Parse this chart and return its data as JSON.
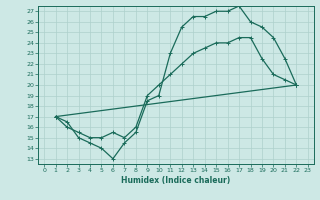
{
  "title": "",
  "xlabel": "Humidex (Indice chaleur)",
  "bg_color": "#cde8e5",
  "line_color": "#1a6b5a",
  "grid_color": "#aed0cc",
  "xlim": [
    -0.5,
    23.5
  ],
  "ylim": [
    12.5,
    27.5
  ],
  "xticks": [
    0,
    1,
    2,
    3,
    4,
    5,
    6,
    7,
    8,
    9,
    10,
    11,
    12,
    13,
    14,
    15,
    16,
    17,
    18,
    19,
    20,
    21,
    22,
    23
  ],
  "yticks": [
    13,
    14,
    15,
    16,
    17,
    18,
    19,
    20,
    21,
    22,
    23,
    24,
    25,
    26,
    27
  ],
  "line1_x": [
    1,
    2,
    3,
    4,
    5,
    6,
    7,
    8,
    9,
    10,
    11,
    12,
    13,
    14,
    15,
    16,
    17,
    18,
    19,
    20,
    21,
    22
  ],
  "line1_y": [
    17,
    16.5,
    15,
    14.5,
    14,
    13,
    14.5,
    15.5,
    18.5,
    19,
    23,
    25.5,
    26.5,
    26.5,
    27,
    27,
    27.5,
    26,
    25.5,
    24.5,
    22.5,
    20
  ],
  "line2_x": [
    1,
    22
  ],
  "line2_y": [
    17,
    20
  ],
  "line3_x": [
    1,
    2,
    3,
    4,
    5,
    6,
    7,
    8,
    9,
    10,
    11,
    12,
    13,
    14,
    15,
    16,
    17,
    18,
    19,
    20,
    21,
    22
  ],
  "line3_y": [
    17,
    16,
    15.5,
    15,
    15,
    15.5,
    15,
    16,
    19,
    20,
    21,
    22,
    23,
    23.5,
    24,
    24,
    24.5,
    24.5,
    22.5,
    21,
    20.5,
    20
  ],
  "marker": "+"
}
